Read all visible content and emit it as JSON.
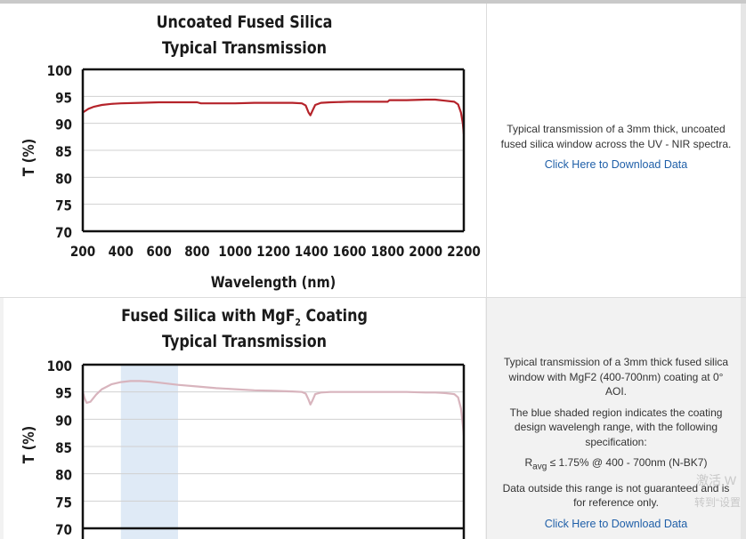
{
  "charts": [
    {
      "title_line1": "Uncoated Fused Silica",
      "title_line2": "Typical Transmission",
      "description": "Typical transmission of a 3mm thick, uncoated fused silica window across the UV - NIR spectra.",
      "download_link": "Click Here to Download Data"
    },
    {
      "title_line1_pre": "Fused Silica with MgF",
      "title_line1_sub": "2",
      "title_line1_post": " Coating",
      "title_line2": "Typical Transmission",
      "desc_p1": "Typical transmission of a 3mm thick fused silica window with MgF2 (400-700nm) coating at 0° AOI.",
      "desc_p2": "The blue shaded region indicates the coating design wavelengh range, with the following specification:",
      "spec_r": "R",
      "spec_sub": "avg",
      "spec_rest": " ≤ 1.75% @ 400 - 700nm (N-BK7)",
      "desc_p4": "Data outside this range is not guaranteed and is for reference only.",
      "download_link": "Click Here to Download Data"
    }
  ],
  "watermark": {
    "line1": "激活 W",
    "line2": "转到“设置"
  },
  "colors": {
    "series1": "#b5232a",
    "series2": "#d8b4bd",
    "shade": "#dfeaf6",
    "link": "#1f5fa8"
  },
  "chart_data": [
    {
      "type": "line",
      "title": "Uncoated Fused Silica Typical Transmission",
      "xlabel": "Wavelength (nm)",
      "ylabel": "T (%)",
      "xlim": [
        200,
        2200
      ],
      "ylim": [
        70,
        100
      ],
      "x_ticks": [
        200,
        400,
        600,
        800,
        1000,
        1200,
        1400,
        1600,
        1800,
        2000,
        2200
      ],
      "y_ticks": [
        100,
        95,
        90,
        85,
        80,
        75,
        70
      ],
      "grid": true,
      "series": [
        {
          "x": [
            200,
            230,
            260,
            300,
            350,
            400,
            500,
            600,
            700,
            800,
            820,
            900,
            1000,
            1100,
            1200,
            1300,
            1350,
            1370,
            1385,
            1395,
            1405,
            1420,
            1450,
            1500,
            1600,
            1700,
            1800,
            1810,
            1900,
            2000,
            2050,
            2100,
            2150,
            2170,
            2185,
            2195,
            2200
          ],
          "y": [
            92.0,
            92.7,
            93.1,
            93.4,
            93.6,
            93.7,
            93.8,
            93.9,
            93.9,
            93.9,
            93.7,
            93.7,
            93.7,
            93.8,
            93.8,
            93.8,
            93.7,
            93.3,
            92.0,
            91.5,
            92.3,
            93.4,
            93.8,
            93.9,
            94.0,
            94.0,
            94.0,
            94.3,
            94.3,
            94.4,
            94.4,
            94.2,
            94.0,
            93.5,
            92.0,
            90.0,
            88.0
          ]
        }
      ]
    },
    {
      "type": "line",
      "title": "Fused Silica with MgF2 Coating Typical Transmission",
      "ylabel": "T (%)",
      "ylim": [
        70,
        100
      ],
      "y_ticks": [
        100,
        95,
        90,
        85,
        80,
        75,
        70
      ],
      "shaded_range": [
        400,
        700
      ],
      "grid": true,
      "series": [
        {
          "x": [
            200,
            210,
            220,
            240,
            270,
            300,
            350,
            400,
            450,
            500,
            550,
            600,
            700,
            800,
            900,
            1000,
            1100,
            1200,
            1300,
            1350,
            1370,
            1385,
            1395,
            1405,
            1420,
            1450,
            1500,
            1600,
            1700,
            1800,
            1900,
            2000,
            2050,
            2100,
            2150,
            2170,
            2185,
            2195,
            2200
          ],
          "y": [
            95.0,
            93.8,
            93.0,
            93.2,
            94.5,
            95.5,
            96.4,
            96.8,
            97.0,
            97.0,
            96.9,
            96.7,
            96.3,
            96.0,
            95.7,
            95.5,
            95.3,
            95.2,
            95.1,
            95.0,
            94.7,
            93.6,
            92.7,
            93.4,
            94.6,
            94.9,
            95.0,
            95.0,
            95.0,
            95.0,
            95.0,
            94.9,
            94.9,
            94.8,
            94.6,
            94.0,
            92.0,
            89.0,
            87.0
          ]
        }
      ]
    }
  ]
}
